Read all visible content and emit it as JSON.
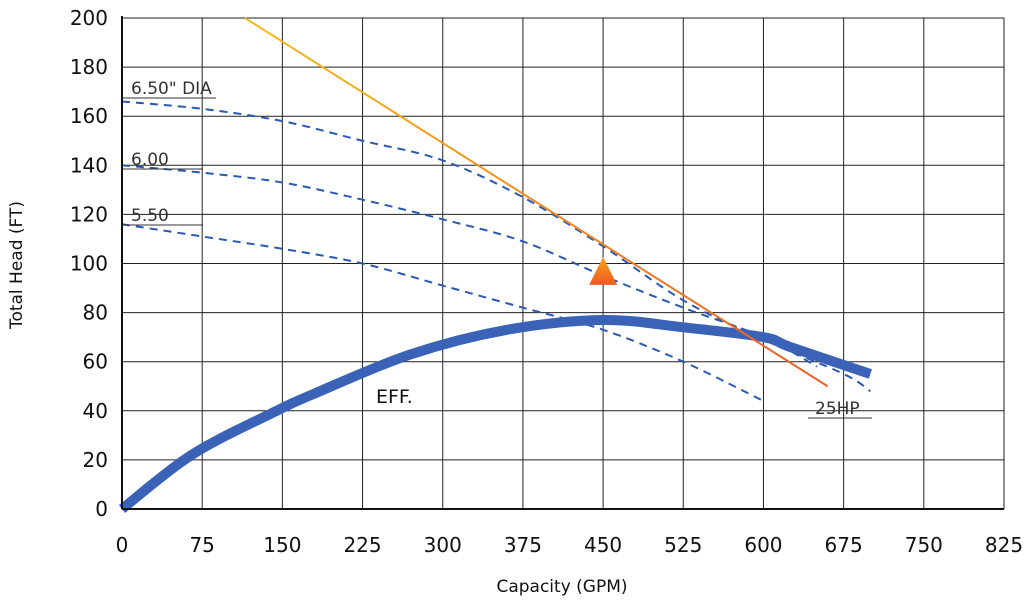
{
  "chart_data": {
    "type": "line",
    "title": "",
    "xlabel": "Capacity (GPM)",
    "ylabel": "Total Head (FT)",
    "xlim": [
      0,
      825
    ],
    "ylim": [
      0,
      200
    ],
    "x_ticks": [
      0,
      75,
      150,
      225,
      300,
      375,
      450,
      525,
      600,
      675,
      750,
      825
    ],
    "y_ticks": [
      0,
      20,
      40,
      60,
      80,
      100,
      120,
      140,
      160,
      180,
      200
    ],
    "grid": true,
    "colors": {
      "grid": "#222222",
      "dia_curves": "#2a5ab0",
      "efficiency": "#3a62b6",
      "hp_line_start": "#f5bb12",
      "hp_line_end": "#ee5b26",
      "operating_point_top": "#f7a21b",
      "operating_point_bottom": "#ef5a22"
    },
    "series": [
      {
        "name": "6.50\" DIA",
        "style": "dashed",
        "label": "6.50\" DIA",
        "points": [
          [
            0,
            166
          ],
          [
            75,
            163
          ],
          [
            150,
            158
          ],
          [
            225,
            150
          ],
          [
            300,
            142
          ],
          [
            375,
            127
          ],
          [
            450,
            107
          ],
          [
            525,
            85
          ],
          [
            600,
            69
          ],
          [
            675,
            55
          ],
          [
            700,
            48
          ]
        ]
      },
      {
        "name": "6.00",
        "style": "dashed",
        "label": "6.00",
        "points": [
          [
            0,
            140
          ],
          [
            75,
            137
          ],
          [
            150,
            133
          ],
          [
            225,
            126
          ],
          [
            300,
            118
          ],
          [
            375,
            109
          ],
          [
            450,
            95
          ],
          [
            525,
            82
          ],
          [
            600,
            70
          ],
          [
            650,
            58
          ]
        ]
      },
      {
        "name": "5.50",
        "style": "dashed",
        "label": "5.50",
        "points": [
          [
            0,
            116
          ],
          [
            75,
            111
          ],
          [
            150,
            106
          ],
          [
            225,
            100
          ],
          [
            300,
            91
          ],
          [
            375,
            82
          ],
          [
            450,
            73
          ],
          [
            525,
            60
          ],
          [
            600,
            44
          ]
        ]
      },
      {
        "name": "EFF.",
        "style": "thick",
        "label": "EFF.",
        "points": [
          [
            0,
            0
          ],
          [
            65,
            22
          ],
          [
            140,
            39
          ],
          [
            180,
            47
          ],
          [
            270,
            63
          ],
          [
            360,
            73
          ],
          [
            450,
            77
          ],
          [
            525,
            74
          ],
          [
            600,
            70
          ],
          [
            625,
            66
          ],
          [
            700,
            55
          ]
        ]
      },
      {
        "name": "25HP",
        "style": "gradient",
        "label": "25HP",
        "points": [
          [
            115,
            200
          ],
          [
            660,
            50
          ]
        ]
      }
    ],
    "operating_point": {
      "x": 450,
      "y": 97,
      "marker": "triangle"
    }
  }
}
